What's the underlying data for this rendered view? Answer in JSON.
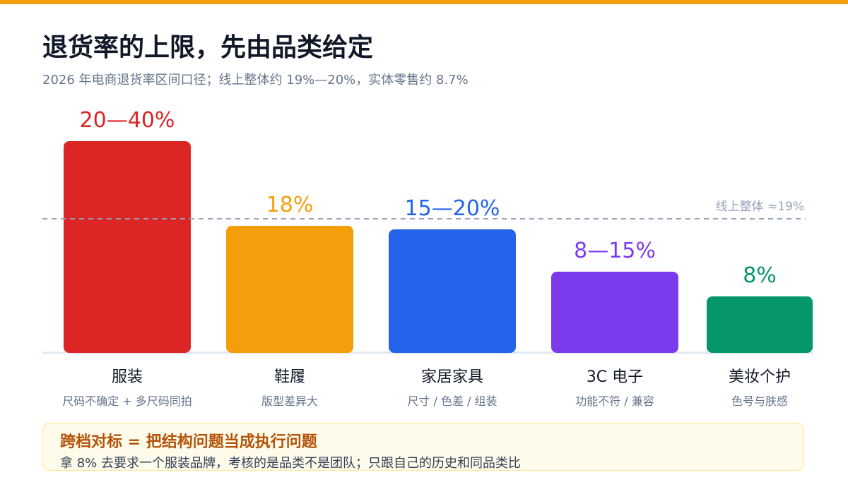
{
  "header": {
    "title": "退货率的上限，先由品类给定",
    "subtitle": "2026 年电商退货率区间口径；线上整体约 19%—20%，实体零售约 8.7%"
  },
  "chart_data": {
    "type": "bar",
    "categories": [
      "服装",
      "鞋履",
      "家居家具",
      "3C 电子",
      "美妆个护"
    ],
    "descriptions": [
      "尺码不确定 + 多尺码同拍",
      "版型差异大",
      "尺寸 / 色差 / 组装",
      "功能不符 / 兼容",
      "色号与肤感"
    ],
    "value_labels": [
      "20—40%",
      "18%",
      "15—20%",
      "8—15%",
      "8%"
    ],
    "values": [
      30,
      18,
      17.5,
      11.5,
      8
    ],
    "ranges": [
      [
        20,
        40
      ],
      null,
      [
        15,
        20
      ],
      [
        8,
        15
      ],
      null
    ],
    "colors": [
      "#dc2626",
      "#f59e0b",
      "#2563eb",
      "#7c3aed",
      "#059669"
    ],
    "unit": "%",
    "reference_line": {
      "value": 19,
      "label": "线上整体 ≈19%"
    },
    "ylim": [
      0,
      33
    ],
    "grid": false,
    "legend": "none"
  },
  "callout": {
    "title": "跨档对标 = 把结构问题当成执行问题",
    "body": "拿 8% 去要求一个服装品牌，考核的是品类不是团队；只跟自己的历史和同品类比"
  },
  "colors": {
    "accent": "#f59e0b",
    "reference_line": "#94a3b8",
    "callout_bg": "#fffbeb",
    "callout_border": "#fde68a",
    "callout_title": "#b45309"
  }
}
